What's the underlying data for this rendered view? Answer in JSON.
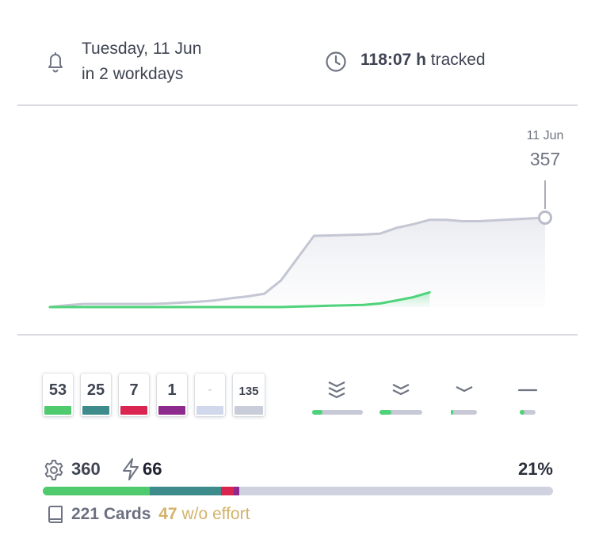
{
  "header": {
    "deadline_date": "Tuesday, 11 Jun",
    "deadline_relative": "in 2 workdays",
    "tracked_value": "118:07 h",
    "tracked_label": "tracked"
  },
  "chart_data": {
    "type": "line",
    "title": "",
    "x_end_label": "11 Jun",
    "end_value": "357",
    "series": [
      {
        "values": [
          0,
          4,
          7,
          7,
          7,
          7,
          7,
          8,
          10,
          12,
          15,
          20,
          24,
          30,
          60,
          110,
          160,
          161,
          162,
          163,
          165,
          178,
          186,
          196,
          196,
          193,
          193,
          195,
          197,
          199,
          201
        ]
      },
      {
        "values": [
          0,
          0,
          0,
          0,
          0,
          0,
          0,
          0,
          0,
          0,
          0,
          0,
          0,
          0,
          0,
          1,
          2,
          3,
          4,
          5,
          8,
          15,
          22,
          33
        ]
      }
    ],
    "colors": {
      "total": "#c4c7d3",
      "done": "#4fd37a"
    }
  },
  "counts": [
    {
      "value": "53",
      "color": "#4fcb6e"
    },
    {
      "value": "25",
      "color": "#3d8b8a"
    },
    {
      "value": "7",
      "color": "#d9254f"
    },
    {
      "value": "1",
      "color": "#8d2a8e"
    },
    {
      "value": "-",
      "color": "#d2d8eb"
    },
    {
      "value": "135",
      "color": "#c9ccd9"
    }
  ],
  "priorities": [
    {
      "icon": "triple-chevron-icon",
      "progress": 0.2
    },
    {
      "icon": "double-chevron-icon",
      "progress": 0.28
    },
    {
      "icon": "single-chevron-icon",
      "progress": 0.1
    },
    {
      "icon": "dash-icon",
      "progress": 0.3
    }
  ],
  "stats": {
    "effort": "360",
    "energy": "66",
    "percent": "21%",
    "cards": "221 Cards",
    "without_effort_count": "47",
    "without_effort_label": "w/o effort"
  },
  "progress_segments": [
    {
      "fraction": 0.21,
      "color": "#4fcb6e"
    },
    {
      "fraction": 0.14,
      "color": "#3d8b8a"
    },
    {
      "fraction": 0.025,
      "color": "#d9254f"
    },
    {
      "fraction": 0.01,
      "color": "#8d2a8e"
    }
  ]
}
